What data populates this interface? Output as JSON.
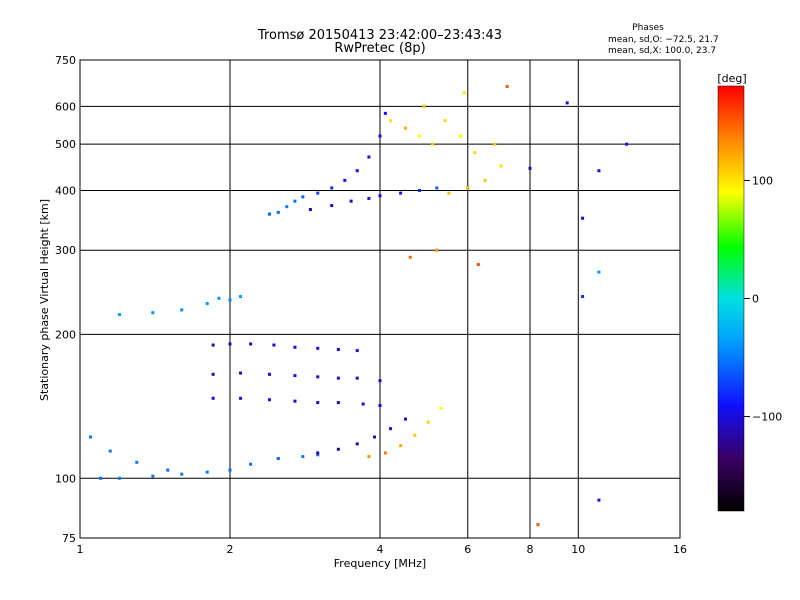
{
  "chart_data": {
    "type": "scatter",
    "title": "Tromsø 20150413 23:42:00–23:43:43",
    "subtitle": "RwPretec (8p)",
    "xlabel": "Frequency [MHz]",
    "ylabel": "Stationary phase Virtual Height [km]",
    "x_scale": "log",
    "y_scale": "log",
    "xlim": [
      1,
      16
    ],
    "ylim": [
      75,
      750
    ],
    "x_ticks": [
      1,
      2,
      4,
      6,
      8,
      10,
      16
    ],
    "y_ticks": [
      75,
      100,
      200,
      300,
      400,
      500,
      600,
      750
    ],
    "grid": true,
    "phase_info": {
      "heading": "Phases",
      "line1": "mean, sd,O: −72.5, 21.7",
      "line2": "mean, sd,X: 100.0, 23.7"
    },
    "colorbar": {
      "label": "[deg]",
      "range": [
        -180,
        180
      ],
      "ticks": [
        100,
        0,
        -100
      ]
    },
    "series": [
      {
        "points": [
          [
            1.05,
            122,
            -50
          ],
          [
            1.15,
            114,
            -50
          ],
          [
            1.3,
            108,
            -50
          ],
          [
            1.5,
            104,
            -55
          ],
          [
            1.8,
            103,
            -50
          ],
          [
            2.0,
            104,
            -55
          ],
          [
            2.2,
            107,
            -55
          ],
          [
            2.5,
            110,
            -60
          ],
          [
            2.8,
            111,
            -50
          ],
          [
            3.0,
            112,
            -55
          ],
          [
            1.1,
            100,
            -55
          ],
          [
            1.2,
            100,
            -50
          ],
          [
            1.4,
            101,
            -55
          ],
          [
            1.6,
            102,
            -50
          ]
        ]
      },
      {
        "points": [
          [
            1.2,
            220,
            -40
          ],
          [
            1.4,
            222,
            -40
          ],
          [
            1.6,
            225,
            -40
          ],
          [
            1.8,
            232,
            -40
          ],
          [
            1.9,
            238,
            -40
          ],
          [
            2.0,
            236,
            -45
          ],
          [
            2.1,
            240,
            -35
          ]
        ]
      },
      {
        "points": [
          [
            2.4,
            357,
            -60
          ],
          [
            2.5,
            360,
            -55
          ],
          [
            2.6,
            370,
            -50
          ],
          [
            2.7,
            380,
            -55
          ],
          [
            2.8,
            388,
            -60
          ],
          [
            3.0,
            395,
            -70
          ],
          [
            3.2,
            405,
            -80
          ],
          [
            3.4,
            420,
            -90
          ],
          [
            3.6,
            440,
            -95
          ],
          [
            3.8,
            470,
            -100
          ],
          [
            4.0,
            520,
            -100
          ],
          [
            4.1,
            580,
            -95
          ]
        ]
      },
      {
        "points": [
          [
            2.9,
            365,
            -110
          ],
          [
            3.2,
            372,
            -105
          ],
          [
            3.5,
            380,
            -110
          ],
          [
            3.8,
            385,
            -105
          ],
          [
            4.0,
            390,
            -100
          ],
          [
            4.4,
            395,
            -90
          ],
          [
            4.8,
            400,
            -80
          ],
          [
            5.2,
            405,
            -60
          ]
        ]
      },
      {
        "points": [
          [
            1.85,
            190,
            -110
          ],
          [
            2.0,
            191,
            -115
          ],
          [
            2.2,
            191,
            -110
          ],
          [
            2.45,
            190,
            -105
          ],
          [
            2.7,
            188,
            -100
          ],
          [
            3.0,
            187,
            -95
          ],
          [
            3.3,
            186,
            -100
          ],
          [
            3.6,
            185,
            -105
          ]
        ]
      },
      {
        "points": [
          [
            1.85,
            165,
            -105
          ],
          [
            2.1,
            166,
            -105
          ],
          [
            2.4,
            165,
            -100
          ],
          [
            2.7,
            164,
            -95
          ],
          [
            3.0,
            163,
            -100
          ],
          [
            3.3,
            162,
            -105
          ],
          [
            3.6,
            162,
            -110
          ],
          [
            4.0,
            160,
            -100
          ]
        ]
      },
      {
        "points": [
          [
            1.85,
            147,
            -100
          ],
          [
            2.1,
            147,
            -100
          ],
          [
            2.4,
            146,
            -95
          ],
          [
            2.7,
            145,
            -100
          ],
          [
            3.0,
            144,
            -105
          ],
          [
            3.3,
            144,
            -110
          ],
          [
            3.7,
            143,
            -100
          ],
          [
            4.0,
            142,
            -90
          ]
        ]
      },
      {
        "points": [
          [
            3.0,
            113,
            -115
          ],
          [
            3.3,
            115,
            -115
          ],
          [
            3.6,
            118,
            -115
          ],
          [
            3.9,
            122,
            -110
          ],
          [
            4.2,
            127,
            -105
          ],
          [
            4.5,
            133,
            -100
          ]
        ]
      },
      {
        "points": [
          [
            3.8,
            111,
            130
          ],
          [
            4.1,
            113,
            140
          ],
          [
            4.4,
            117,
            120
          ],
          [
            4.7,
            123,
            110
          ],
          [
            5.0,
            131,
            105
          ],
          [
            5.3,
            140,
            90
          ]
        ]
      },
      {
        "points": [
          [
            5.5,
            395,
            115
          ],
          [
            6.0,
            405,
            120
          ],
          [
            6.5,
            420,
            110
          ],
          [
            7.0,
            450,
            100
          ],
          [
            6.2,
            480,
            105
          ],
          [
            5.8,
            520,
            95
          ],
          [
            6.8,
            500,
            110
          ]
        ]
      },
      {
        "points": [
          [
            4.2,
            560,
            100
          ],
          [
            4.5,
            540,
            120
          ],
          [
            4.8,
            520,
            90
          ],
          [
            5.1,
            500,
            110
          ],
          [
            4.9,
            600,
            115
          ],
          [
            5.4,
            560,
            105
          ],
          [
            5.9,
            640,
            100
          ]
        ]
      },
      {
        "points": [
          [
            4.6,
            290,
            145
          ],
          [
            5.2,
            300,
            130
          ],
          [
            6.3,
            280,
            155
          ],
          [
            7.2,
            660,
            150
          ],
          [
            8.3,
            80,
            150
          ],
          [
            8.0,
            445,
            -110
          ],
          [
            9.5,
            610,
            -110
          ],
          [
            11.0,
            440,
            -100
          ],
          [
            10.2,
            350,
            -110
          ],
          [
            11.0,
            270,
            -40
          ],
          [
            10.2,
            240,
            -80
          ],
          [
            11.0,
            90,
            -100
          ],
          [
            12.5,
            500,
            -100
          ]
        ]
      }
    ]
  }
}
